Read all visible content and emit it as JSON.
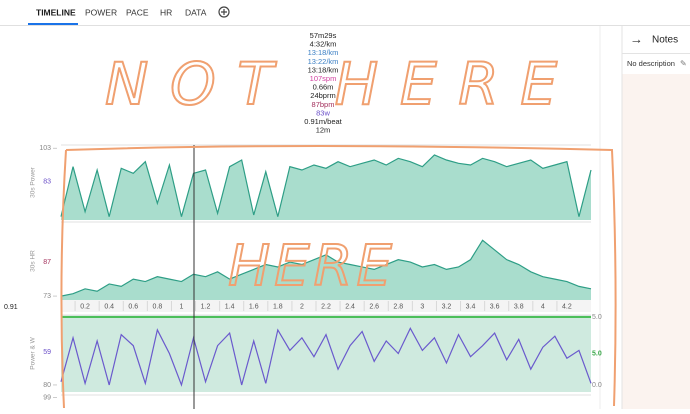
{
  "tabs": [
    "TIMELINE",
    "POWER",
    "PACE",
    "HR",
    "DATA"
  ],
  "stats": [
    {
      "text": "57m29s",
      "color": "#222222"
    },
    {
      "text": "4:32/km",
      "color": "#222222"
    },
    {
      "text": "13:18/km",
      "color": "#3b7fc4"
    },
    {
      "text": "13:22/km",
      "color": "#3b7fc4"
    },
    {
      "text": "13:18/km",
      "color": "#222222"
    },
    {
      "text": "107spm",
      "color": "#d23fa0"
    },
    {
      "text": "0.66m",
      "color": "#222222"
    },
    {
      "text": "24bprm",
      "color": "#222222"
    },
    {
      "text": "87bpm",
      "color": "#a3305c"
    },
    {
      "text": "83w",
      "color": "#6a4fc8"
    },
    {
      "text": "0.91m/beat",
      "color": "#222222"
    },
    {
      "text": "12m",
      "color": "#222222"
    }
  ],
  "notes": {
    "title": "Notes",
    "description": "No description"
  },
  "annotations": [
    "NOT HERE",
    "HERE"
  ],
  "xaxis": {
    "xlim": [
      0,
      4.4
    ],
    "cursor_label": "0.91",
    "xticks": [
      0.2,
      0.4,
      0.6,
      0.8,
      1,
      1.2,
      1.4,
      1.6,
      1.8,
      2,
      2.2,
      2.4,
      2.6,
      2.8,
      3,
      3.2,
      3.4,
      3.6,
      3.8,
      4,
      4.2
    ],
    "x": [
      0,
      0.1,
      0.2,
      0.3,
      0.4,
      0.5,
      0.6,
      0.7,
      0.8,
      0.9,
      1,
      1.1,
      1.2,
      1.3,
      1.4,
      1.5,
      1.6,
      1.7,
      1.8,
      1.9,
      2,
      2.1,
      2.2,
      2.3,
      2.4,
      2.5,
      2.6,
      2.7,
      2.8,
      2.9,
      3,
      3.1,
      3.2,
      3.3,
      3.4,
      3.5,
      3.6,
      3.7,
      3.8,
      3.9,
      4,
      4.1,
      4.2,
      4.3,
      4.4
    ]
  },
  "panels": [
    {
      "label": "30s Power",
      "ylim": [
        60,
        105
      ],
      "yticks": [
        103
      ],
      "cursor": 83,
      "cursor_color": "#6a4fc8",
      "color": "#2e9e86",
      "fill": "#a9ddcd",
      "values": [
        62,
        92,
        65,
        90,
        62,
        91,
        88,
        95,
        70,
        93,
        62,
        88,
        90,
        64,
        92,
        96,
        63,
        89,
        62,
        92,
        90,
        93,
        91,
        95,
        92,
        94,
        96,
        93,
        97,
        95,
        92,
        99,
        96,
        94,
        93,
        97,
        95,
        92,
        94,
        96,
        91,
        93,
        95,
        62,
        90
      ]
    },
    {
      "label": "30s HR",
      "ylim": [
        71.4,
        103.5
      ],
      "yticks": [
        73
      ],
      "cursor": 87,
      "cursor_color": "#a3305c",
      "color": "#2e9e86",
      "fill": "#a9ddcd",
      "values": [
        73,
        74,
        76,
        75,
        78,
        77,
        80,
        79,
        81,
        80,
        79,
        82,
        81,
        83,
        80,
        82,
        84,
        86,
        85,
        87,
        86,
        88,
        90,
        87,
        86,
        85,
        84,
        86,
        88,
        87,
        85,
        86,
        84,
        85,
        88,
        96,
        92,
        88,
        86,
        83,
        81,
        80,
        79,
        77,
        76
      ]
    },
    {
      "label": "Power & W",
      "ylim": [
        84.5,
        35.5
      ],
      "yticks": [
        80
      ],
      "cursor": 59,
      "cursor_color": "#6a4fc8",
      "color": "#6a5acd",
      "fill": "none",
      "y2lim": [
        -0.5,
        5.15
      ],
      "y2ticks": [
        {
          "value": 5,
          "label": "5.0"
        },
        {
          "value": 0,
          "label": "0.0"
        }
      ],
      "y2cursor": {
        "value": 5,
        "label": "5.0"
      },
      "y2cursor_color": "#3aa84a",
      "values": [
        78,
        50,
        79,
        52,
        80,
        48,
        55,
        79,
        45,
        60,
        80,
        50,
        78,
        55,
        47,
        80,
        52,
        79,
        45,
        58,
        50,
        62,
        48,
        70,
        55,
        46,
        65,
        52,
        60,
        44,
        58,
        50,
        66,
        48,
        62,
        55,
        47,
        64,
        51,
        70,
        56,
        49,
        63,
        58,
        79
      ]
    },
    {
      "label": "",
      "ylim": [
        90,
        100
      ],
      "yticks": [
        99
      ]
    }
  ]
}
